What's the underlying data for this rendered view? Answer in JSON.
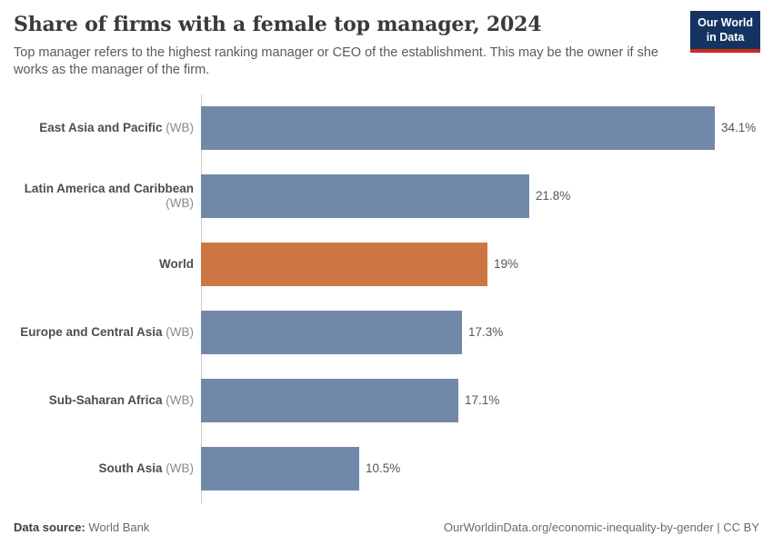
{
  "header": {
    "title": "Share of firms with a female top manager, 2024",
    "subtitle": "Top manager refers to the highest ranking manager or CEO of the establishment. This may be the owner if she works as the manager of the firm.",
    "logo": {
      "line1": "Our World",
      "line2": "in Data"
    }
  },
  "chart_data": {
    "type": "bar",
    "orientation": "horizontal",
    "title": "Share of firms with a female top manager, 2024",
    "subtitle": "Top manager refers to the highest ranking manager or CEO of the establishment. This may be the owner if she works as the manager of the firm.",
    "categories": [
      "East Asia and Pacific",
      "Latin America and Caribbean",
      "World",
      "Europe and Central Asia",
      "Sub-Saharan Africa",
      "South Asia"
    ],
    "category_suffixes": [
      "(WB)",
      "(WB)",
      "",
      "(WB)",
      "(WB)",
      "(WB)"
    ],
    "values": [
      34.1,
      21.8,
      19,
      17.3,
      17.1,
      10.5
    ],
    "value_labels": [
      "34.1%",
      "21.8%",
      "19%",
      "17.3%",
      "17.1%",
      "10.5%"
    ],
    "unit": "%",
    "xlim": [
      0,
      34.1
    ],
    "grid": false,
    "legend": "none",
    "highlight_category": "World",
    "bar_colors": [
      "#7288ab",
      "#7288ab",
      "#ce7643",
      "#7288ab",
      "#7288ab",
      "#7288ab"
    ]
  },
  "colors": {
    "bar_default": "#7288ab",
    "bar_highlight": "#ce7643",
    "axis_line": "#cccccc",
    "logo_background": "#153360",
    "logo_underline": "#cf2a18"
  },
  "footer": {
    "datasource_label": "Data source:",
    "datasource_value": "World Bank",
    "citation": "OurWorldinData.org/economic-inequality-by-gender | CC BY"
  }
}
